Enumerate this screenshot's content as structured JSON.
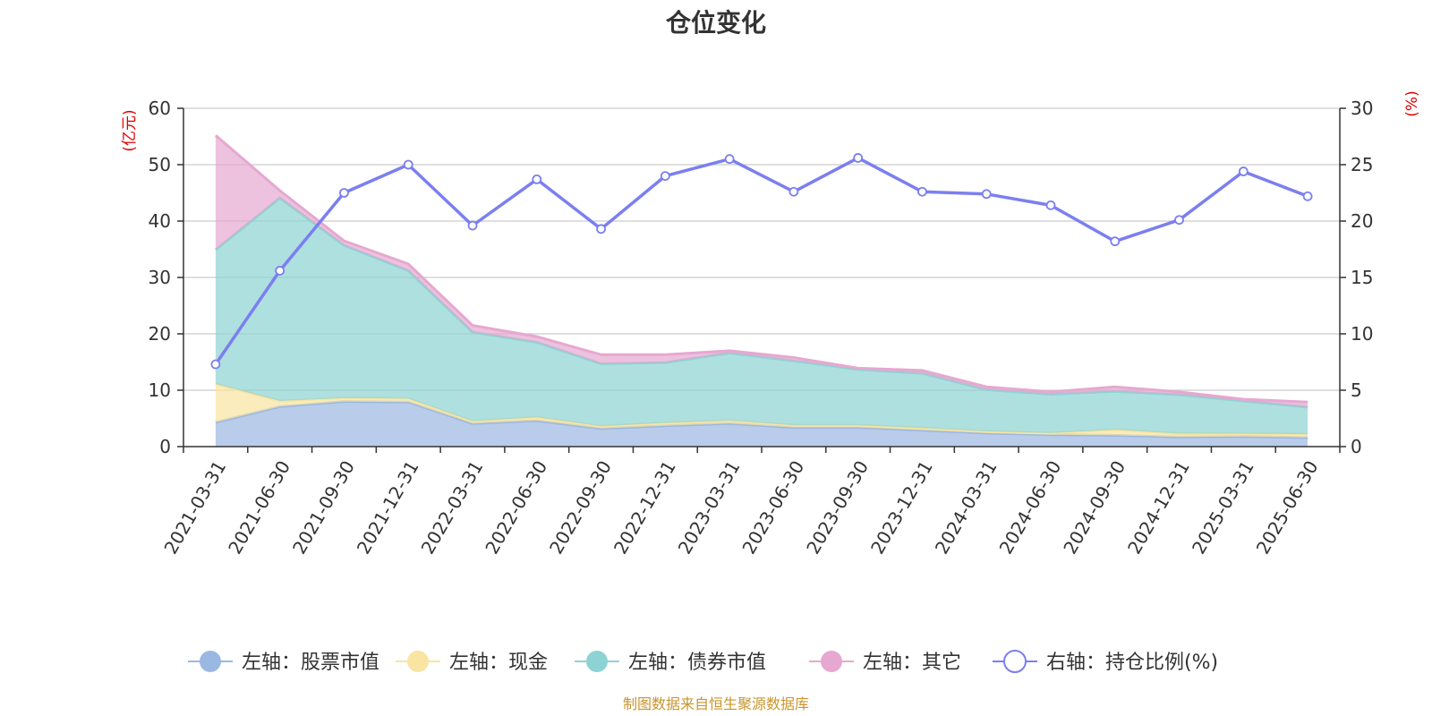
{
  "chart_data": {
    "type": "area",
    "title": "仓位变化",
    "left_axis_unit": "(亿元)",
    "right_axis_unit": "(%)",
    "left_ylim": [
      0,
      60
    ],
    "right_ylim": [
      0,
      30
    ],
    "left_ticks": [
      "0",
      "10",
      "20",
      "30",
      "40",
      "50",
      "60"
    ],
    "right_ticks": [
      "0",
      "5",
      "10",
      "15",
      "20",
      "25",
      "30"
    ],
    "x": [
      "2021-03-31",
      "2021-06-30",
      "2021-09-30",
      "2021-12-31",
      "2022-03-31",
      "2022-06-30",
      "2022-09-30",
      "2022-12-31",
      "2023-03-31",
      "2023-06-30",
      "2023-09-30",
      "2023-12-31",
      "2024-03-31",
      "2024-06-30",
      "2024-09-30",
      "2024-12-31",
      "2025-03-31",
      "2025-06-30"
    ],
    "stacked": true,
    "grid": true,
    "legend_position": "bottom",
    "series": [
      {
        "name": "左轴：股票市值",
        "axis": "left",
        "color": "#9bb8e2",
        "values": [
          4.3,
          7.1,
          8.0,
          7.9,
          4.1,
          4.6,
          3.2,
          3.7,
          4.1,
          3.4,
          3.4,
          2.9,
          2.4,
          2.1,
          2.0,
          1.7,
          1.8,
          1.6
        ]
      },
      {
        "name": "左轴：现金",
        "axis": "left",
        "color": "#f9e4a1",
        "values": [
          6.8,
          1.0,
          0.6,
          0.6,
          0.4,
          0.6,
          0.4,
          0.5,
          0.5,
          0.4,
          0.4,
          0.4,
          0.3,
          0.3,
          1.0,
          0.6,
          0.5,
          0.6
        ]
      },
      {
        "name": "左轴：债券市值",
        "axis": "left",
        "color": "#8dd3d3",
        "values": [
          23.8,
          36.0,
          27.1,
          22.7,
          15.8,
          13.3,
          11.1,
          10.7,
          12.0,
          11.4,
          9.9,
          9.7,
          7.4,
          6.9,
          6.8,
          6.9,
          5.8,
          4.8
        ]
      },
      {
        "name": "左轴：其它",
        "axis": "left",
        "color": "#e6a8d0",
        "values": [
          20.3,
          1.3,
          0.8,
          1.2,
          1.2,
          1.0,
          1.6,
          1.4,
          0.4,
          0.6,
          0.2,
          0.5,
          0.5,
          0.4,
          0.8,
          0.5,
          0.3,
          0.9
        ]
      },
      {
        "name": "右轴：持仓比例(%)",
        "axis": "right",
        "type": "line",
        "color": "#7b7ff0",
        "values": [
          7.3,
          15.6,
          22.5,
          25.0,
          19.6,
          23.7,
          19.3,
          24.0,
          25.5,
          22.6,
          25.6,
          22.6,
          22.4,
          21.4,
          18.2,
          20.1,
          24.4,
          22.2
        ]
      }
    ]
  },
  "source_note": "制图数据来自恒生聚源数据库",
  "colors": {
    "axis_unit": "#e00000",
    "source": "#c9952b",
    "grid": "#cccccc",
    "axis": "#333333"
  }
}
